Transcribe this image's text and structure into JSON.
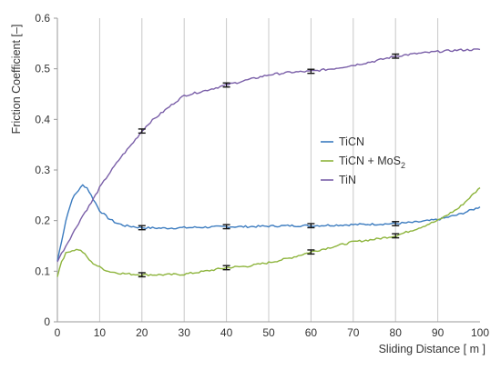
{
  "chart_data": {
    "type": "line",
    "xlabel": "Sliding Distance [ m ]",
    "ylabel": "Friction Coefficient [–]",
    "xlim": [
      0,
      100
    ],
    "ylim": [
      0,
      0.6
    ],
    "x_ticks": [
      "0",
      "10",
      "20",
      "30",
      "40",
      "50",
      "60",
      "70",
      "80",
      "90",
      "100"
    ],
    "y_ticks": [
      "0",
      "0.1",
      "0.2",
      "0.3",
      "0.4",
      "0.5",
      "0.6"
    ],
    "grid": "vertical",
    "legend_position": "center-right",
    "series": [
      {
        "name": "TiCN",
        "color": "#3b7bbf",
        "x": [
          0,
          1,
          2,
          3,
          4,
          5,
          6,
          7,
          8,
          9,
          10,
          12,
          14,
          16,
          18,
          20,
          25,
          30,
          35,
          40,
          45,
          50,
          55,
          60,
          65,
          70,
          75,
          80,
          85,
          90,
          95,
          100
        ],
        "y": [
          0.12,
          0.16,
          0.2,
          0.23,
          0.25,
          0.26,
          0.27,
          0.265,
          0.25,
          0.235,
          0.22,
          0.205,
          0.195,
          0.19,
          0.188,
          0.186,
          0.185,
          0.186,
          0.187,
          0.188,
          0.188,
          0.189,
          0.19,
          0.19,
          0.191,
          0.192,
          0.193,
          0.194,
          0.197,
          0.202,
          0.212,
          0.227
        ]
      },
      {
        "name": "TiCN + MoS",
        "name_sub": "2",
        "color": "#8db43c",
        "x": [
          0,
          1,
          2,
          3,
          4,
          5,
          6,
          7,
          8,
          10,
          12,
          14,
          16,
          18,
          20,
          25,
          30,
          35,
          40,
          45,
          50,
          55,
          60,
          65,
          70,
          75,
          80,
          85,
          90,
          95,
          100
        ],
        "y": [
          0.09,
          0.12,
          0.135,
          0.14,
          0.142,
          0.143,
          0.138,
          0.128,
          0.118,
          0.108,
          0.1,
          0.097,
          0.095,
          0.094,
          0.093,
          0.093,
          0.094,
          0.1,
          0.107,
          0.11,
          0.117,
          0.126,
          0.138,
          0.148,
          0.158,
          0.163,
          0.17,
          0.184,
          0.2,
          0.225,
          0.265
        ]
      },
      {
        "name": "TiN",
        "color": "#7a5fa8",
        "x": [
          0,
          2,
          4,
          6,
          8,
          10,
          12,
          15,
          18,
          20,
          22,
          25,
          28,
          30,
          35,
          40,
          45,
          50,
          55,
          60,
          65,
          70,
          75,
          80,
          85,
          90,
          95,
          100
        ],
        "y": [
          0.12,
          0.15,
          0.18,
          0.21,
          0.235,
          0.265,
          0.29,
          0.325,
          0.355,
          0.377,
          0.395,
          0.415,
          0.435,
          0.447,
          0.457,
          0.468,
          0.478,
          0.488,
          0.493,
          0.495,
          0.5,
          0.507,
          0.515,
          0.525,
          0.53,
          0.534,
          0.537,
          0.538
        ]
      }
    ],
    "error_bars": [
      {
        "series": "TiCN",
        "x": [
          20,
          40,
          60,
          80
        ],
        "y": [
          0.186,
          0.188,
          0.19,
          0.194
        ],
        "err": 0.004
      },
      {
        "series": "TiCN + MoS2",
        "x": [
          20,
          40,
          60,
          80
        ],
        "y": [
          0.093,
          0.107,
          0.138,
          0.17
        ],
        "err": 0.004
      },
      {
        "series": "TiN",
        "x": [
          20,
          40,
          60,
          80
        ],
        "y": [
          0.377,
          0.468,
          0.495,
          0.525
        ],
        "err": 0.004
      }
    ]
  }
}
